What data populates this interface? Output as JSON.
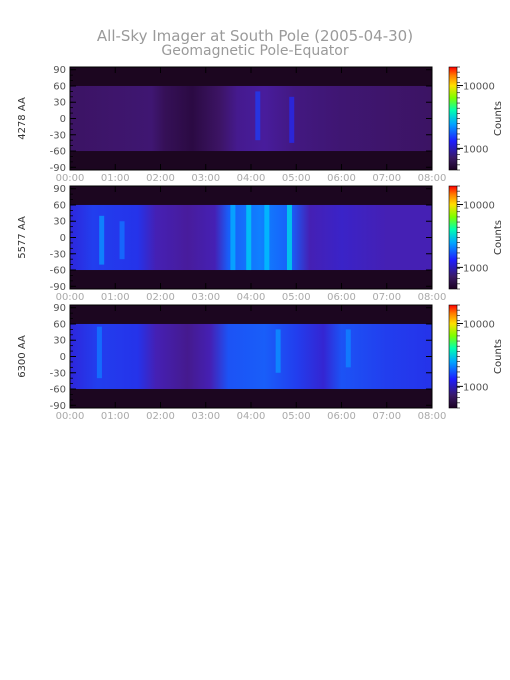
{
  "figure": {
    "title": "All-Sky Imager at South Pole (2005-04-30)",
    "subtitle": "Geomagnetic Pole-Equator"
  },
  "chart_data": [
    {
      "type": "heatmap",
      "ylabel": "4278 AA",
      "x_ticks": [
        "00:00",
        "01:00",
        "02:00",
        "03:00",
        "04:00",
        "05:00",
        "06:00",
        "07:00",
        "08:00"
      ],
      "x_range_hours": [
        0,
        8
      ],
      "y_ticks": [
        90,
        60,
        30,
        0,
        -30,
        -60,
        -90
      ],
      "ylim": [
        -95,
        95
      ],
      "data_lat_range": [
        -60,
        60
      ],
      "colorbar": {
        "label": "Counts",
        "ticks": [
          "10000",
          "1000"
        ]
      },
      "intensity_profile": [
        {
          "t": 0.0,
          "v": 0.1
        },
        {
          "t": 1.8,
          "v": 0.12
        },
        {
          "t": 2.1,
          "v": 0.08
        },
        {
          "t": 2.7,
          "v": 0.05
        },
        {
          "t": 3.3,
          "v": 0.1
        },
        {
          "t": 3.7,
          "v": 0.16
        },
        {
          "t": 4.3,
          "v": 0.18
        },
        {
          "t": 5.0,
          "v": 0.14
        },
        {
          "t": 6.0,
          "v": 0.12
        },
        {
          "t": 7.0,
          "v": 0.11
        },
        {
          "t": 8.0,
          "v": 0.1
        }
      ],
      "streaks": [
        {
          "t": 4.15,
          "lat_from": -40,
          "lat_to": 50,
          "v": 0.35
        },
        {
          "t": 4.9,
          "lat_from": -45,
          "lat_to": 40,
          "v": 0.32
        }
      ]
    },
    {
      "type": "heatmap",
      "ylabel": "5577 AA",
      "x_ticks": [
        "00:00",
        "01:00",
        "02:00",
        "03:00",
        "04:00",
        "05:00",
        "06:00",
        "07:00",
        "08:00"
      ],
      "x_range_hours": [
        0,
        8
      ],
      "y_ticks": [
        90,
        60,
        30,
        0,
        -30,
        -60,
        -90
      ],
      "ylim": [
        -95,
        95
      ],
      "data_lat_range": [
        -60,
        60
      ],
      "colorbar": {
        "label": "Counts",
        "ticks": [
          "10000",
          "1000"
        ]
      },
      "intensity_profile": [
        {
          "t": 0.0,
          "v": 0.3
        },
        {
          "t": 0.5,
          "v": 0.36
        },
        {
          "t": 1.5,
          "v": 0.34
        },
        {
          "t": 1.9,
          "v": 0.22
        },
        {
          "t": 2.6,
          "v": 0.18
        },
        {
          "t": 3.2,
          "v": 0.22
        },
        {
          "t": 3.5,
          "v": 0.42
        },
        {
          "t": 4.2,
          "v": 0.48
        },
        {
          "t": 4.9,
          "v": 0.42
        },
        {
          "t": 5.3,
          "v": 0.22
        },
        {
          "t": 6.0,
          "v": 0.26
        },
        {
          "t": 7.0,
          "v": 0.22
        },
        {
          "t": 8.0,
          "v": 0.22
        }
      ],
      "streaks": [
        {
          "t": 0.7,
          "lat_from": -50,
          "lat_to": 40,
          "v": 0.5
        },
        {
          "t": 1.15,
          "lat_from": -40,
          "lat_to": 30,
          "v": 0.45
        },
        {
          "t": 3.6,
          "lat_from": -60,
          "lat_to": 60,
          "v": 0.55
        },
        {
          "t": 3.95,
          "lat_from": -60,
          "lat_to": 60,
          "v": 0.6
        },
        {
          "t": 4.35,
          "lat_from": -60,
          "lat_to": 60,
          "v": 0.58
        },
        {
          "t": 4.85,
          "lat_from": -60,
          "lat_to": 60,
          "v": 0.62
        }
      ]
    },
    {
      "type": "heatmap",
      "ylabel": "6300 AA",
      "x_ticks": [
        "00:00",
        "01:00",
        "02:00",
        "03:00",
        "04:00",
        "05:00",
        "06:00",
        "07:00",
        "08:00"
      ],
      "x_range_hours": [
        0,
        8
      ],
      "y_ticks": [
        90,
        60,
        30,
        0,
        -30,
        -60,
        -90
      ],
      "ylim": [
        -95,
        95
      ],
      "data_lat_range": [
        -60,
        60
      ],
      "colorbar": {
        "label": "Counts",
        "ticks": [
          "10000",
          "1000"
        ]
      },
      "intensity_profile": [
        {
          "t": 0.0,
          "v": 0.3
        },
        {
          "t": 0.6,
          "v": 0.36
        },
        {
          "t": 1.5,
          "v": 0.34
        },
        {
          "t": 1.9,
          "v": 0.22
        },
        {
          "t": 2.6,
          "v": 0.16
        },
        {
          "t": 3.1,
          "v": 0.22
        },
        {
          "t": 3.5,
          "v": 0.4
        },
        {
          "t": 4.3,
          "v": 0.42
        },
        {
          "t": 5.0,
          "v": 0.36
        },
        {
          "t": 5.6,
          "v": 0.28
        },
        {
          "t": 6.0,
          "v": 0.4
        },
        {
          "t": 7.0,
          "v": 0.36
        },
        {
          "t": 8.0,
          "v": 0.34
        }
      ],
      "streaks": [
        {
          "t": 0.65,
          "lat_from": -40,
          "lat_to": 55,
          "v": 0.46
        },
        {
          "t": 4.6,
          "lat_from": -30,
          "lat_to": 50,
          "v": 0.5
        },
        {
          "t": 6.15,
          "lat_from": -20,
          "lat_to": 50,
          "v": 0.48
        }
      ]
    }
  ]
}
